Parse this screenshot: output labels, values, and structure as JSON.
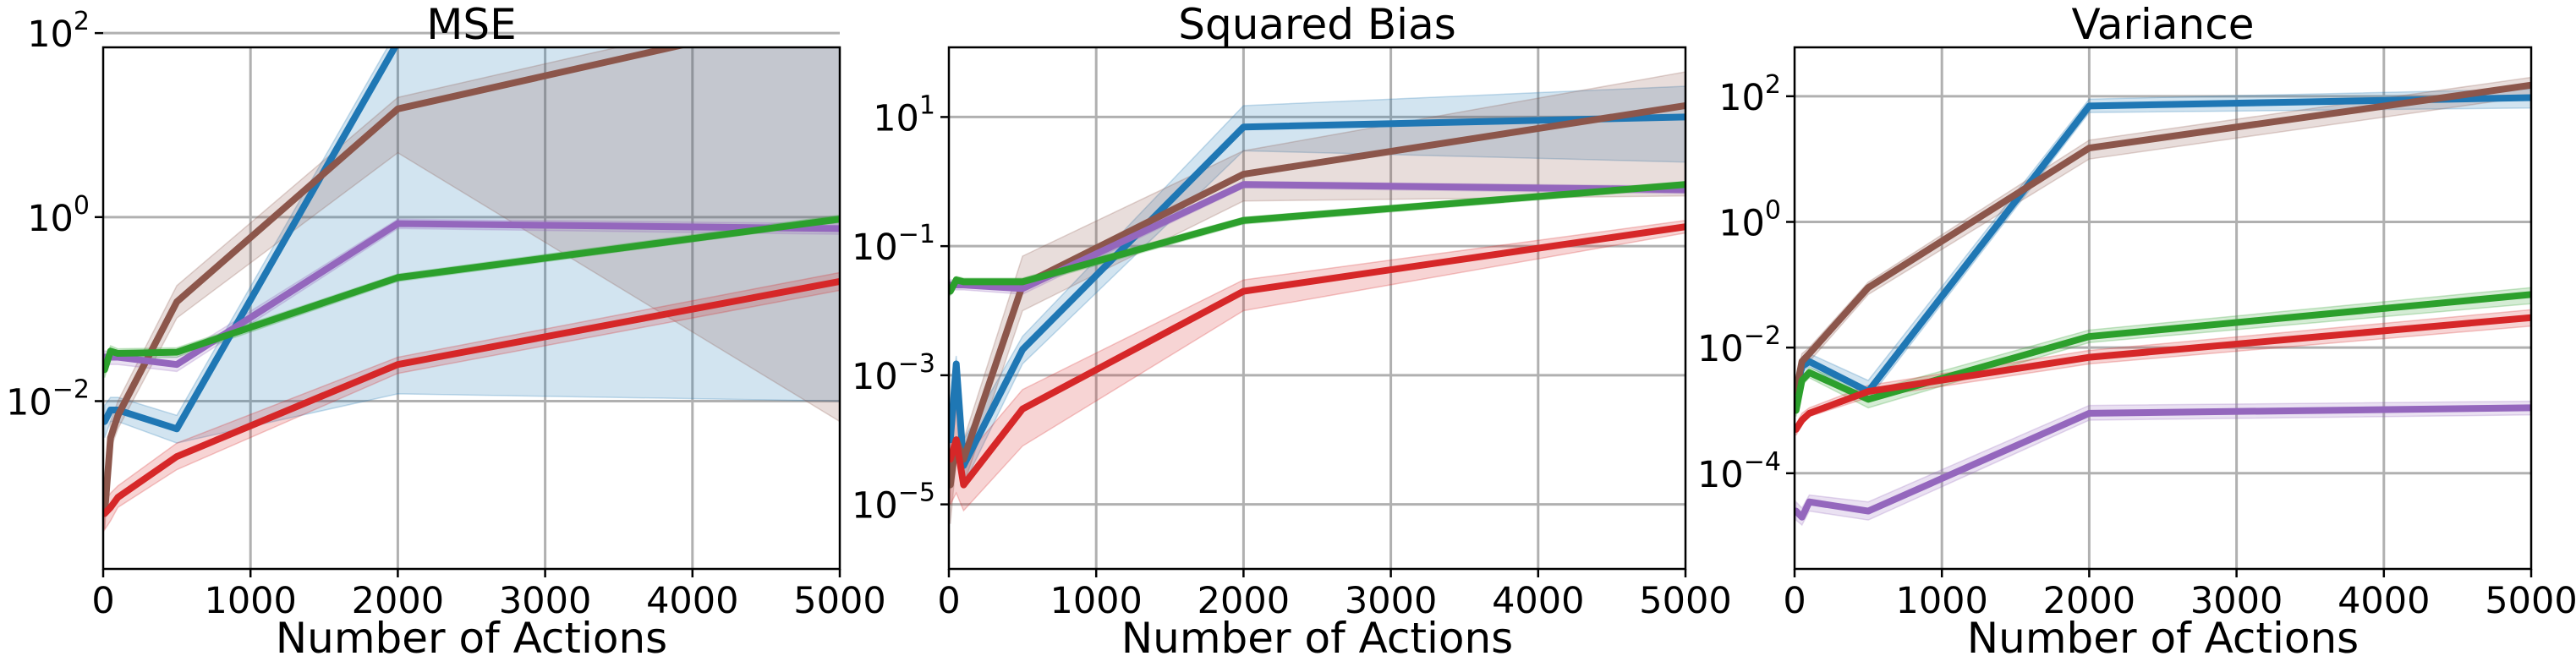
{
  "chart_data": [
    {
      "type": "line",
      "title": "MSE",
      "xlabel": "Number of Actions",
      "ylabel": "",
      "yscale": "log",
      "xlim": [
        0,
        5000
      ],
      "ylim": [
        0.00015,
        70
      ],
      "xticks": [
        0,
        1000,
        2000,
        3000,
        4000,
        5000
      ],
      "yticks": [
        {
          "value": 0.01,
          "exp": "-2"
        },
        {
          "value": 1,
          "exp": "0"
        },
        {
          "value": 100,
          "exp": "2"
        }
      ],
      "grid": true,
      "series": [
        {
          "color": "#1f77b4",
          "x": [
            10,
            50,
            100,
            500,
            2000,
            5000
          ],
          "y": [
            0.006,
            0.008,
            0.008,
            0.005,
            80,
            110
          ],
          "lower": [
            0.004,
            0.006,
            0.006,
            0.0035,
            0.012,
            0.01
          ],
          "upper": [
            0.009,
            0.011,
            0.011,
            0.007,
            110,
            250
          ]
        },
        {
          "color": "#8c564b",
          "x": [
            10,
            50,
            100,
            500,
            2000,
            5000
          ],
          "y": [
            0.0006,
            0.004,
            0.007,
            0.12,
            15,
            180
          ],
          "lower": [
            0.0004,
            0.003,
            0.005,
            0.08,
            5,
            0.006
          ],
          "upper": [
            0.0008,
            0.006,
            0.01,
            0.18,
            20,
            250
          ]
        },
        {
          "color": "#9467bd",
          "x": [
            10,
            50,
            100,
            500,
            2000,
            5000
          ],
          "y": [
            0.03,
            0.03,
            0.03,
            0.025,
            0.85,
            0.75
          ],
          "lower": [
            0.025,
            0.025,
            0.025,
            0.021,
            0.75,
            0.65
          ],
          "upper": [
            0.035,
            0.035,
            0.035,
            0.03,
            0.95,
            0.85
          ]
        },
        {
          "color": "#2ca02c",
          "x": [
            10,
            50,
            100,
            500,
            2000,
            5000
          ],
          "y": [
            0.022,
            0.035,
            0.033,
            0.034,
            0.22,
            0.95
          ],
          "lower": [
            0.018,
            0.03,
            0.029,
            0.03,
            0.2,
            0.88
          ],
          "upper": [
            0.026,
            0.04,
            0.037,
            0.038,
            0.24,
            1.05
          ]
        },
        {
          "color": "#d62728",
          "x": [
            10,
            50,
            100,
            500,
            2000,
            5000
          ],
          "y": [
            0.0006,
            0.0007,
            0.0009,
            0.0025,
            0.025,
            0.2
          ],
          "lower": [
            0.0004,
            0.0005,
            0.0007,
            0.0018,
            0.02,
            0.16
          ],
          "upper": [
            0.0008,
            0.001,
            0.0012,
            0.0035,
            0.03,
            0.25
          ]
        }
      ]
    },
    {
      "type": "line",
      "title": "Squared Bias",
      "xlabel": "Number of Actions",
      "ylabel": "",
      "yscale": "log",
      "xlim": [
        0,
        5000
      ],
      "ylim": [
        1e-06,
        120
      ],
      "xticks": [
        0,
        1000,
        2000,
        3000,
        4000,
        5000
      ],
      "yticks": [
        {
          "value": 1e-05,
          "exp": "-5"
        },
        {
          "value": 0.001,
          "exp": "-3"
        },
        {
          "value": 0.1,
          "exp": "-1"
        },
        {
          "value": 10,
          "exp": "1"
        }
      ],
      "grid": true,
      "series": [
        {
          "color": "#1f77b4",
          "x": [
            10,
            50,
            100,
            500,
            2000,
            5000
          ],
          "y": [
            0.0001,
            0.0015,
            4e-05,
            0.0025,
            7,
            10
          ],
          "lower": [
            2e-05,
            0.0008,
            2e-05,
            0.0015,
            3,
            2
          ],
          "upper": [
            0.0003,
            0.002,
            0.0001,
            0.004,
            15,
            30
          ]
        },
        {
          "color": "#8c564b",
          "x": [
            10,
            50,
            100,
            500,
            2000,
            5000
          ],
          "y": [
            2e-05,
            0.0001,
            5e-05,
            0.025,
            1.3,
            15
          ],
          "lower": [
            5e-06,
            5e-05,
            2e-05,
            0.01,
            0.5,
            0.6
          ],
          "upper": [
            5e-05,
            0.0003,
            0.0001,
            0.07,
            3,
            50
          ]
        },
        {
          "color": "#9467bd",
          "x": [
            10,
            50,
            100,
            500,
            2000,
            5000
          ],
          "y": [
            0.025,
            0.025,
            0.025,
            0.022,
            0.9,
            0.75
          ],
          "lower": [
            0.021,
            0.021,
            0.021,
            0.018,
            0.8,
            0.65
          ],
          "upper": [
            0.03,
            0.03,
            0.03,
            0.026,
            1.0,
            0.85
          ]
        },
        {
          "color": "#2ca02c",
          "x": [
            10,
            50,
            100,
            500,
            2000,
            5000
          ],
          "y": [
            0.02,
            0.03,
            0.028,
            0.028,
            0.25,
            0.9
          ],
          "lower": [
            0.017,
            0.026,
            0.024,
            0.024,
            0.22,
            0.8
          ],
          "upper": [
            0.023,
            0.034,
            0.032,
            0.032,
            0.28,
            1.0
          ]
        },
        {
          "color": "#d62728",
          "x": [
            10,
            50,
            100,
            500,
            2000,
            5000
          ],
          "y": [
            5e-05,
            0.0001,
            2e-05,
            0.0003,
            0.02,
            0.2
          ],
          "lower": [
            1e-05,
            1.5e-05,
            8e-06,
            8e-05,
            0.01,
            0.16
          ],
          "upper": [
            0.0002,
            0.0003,
            5e-05,
            0.0006,
            0.03,
            0.25
          ]
        }
      ]
    },
    {
      "type": "line",
      "title": "Variance",
      "xlabel": "Number of Actions",
      "ylabel": "",
      "yscale": "log",
      "xlim": [
        0,
        5000
      ],
      "ylim": [
        3e-06,
        600
      ],
      "xticks": [
        0,
        1000,
        2000,
        3000,
        4000,
        5000
      ],
      "yticks": [
        {
          "value": 0.0001,
          "exp": "-4"
        },
        {
          "value": 0.01,
          "exp": "-2"
        },
        {
          "value": 1,
          "exp": "0"
        },
        {
          "value": 100,
          "exp": "2"
        }
      ],
      "grid": true,
      "series": [
        {
          "color": "#1f77b4",
          "x": [
            10,
            50,
            100,
            500,
            2000,
            5000
          ],
          "y": [
            0.002,
            0.005,
            0.006,
            0.002,
            70,
            95
          ],
          "lower": [
            0.0015,
            0.004,
            0.005,
            0.0015,
            55,
            65
          ],
          "upper": [
            0.003,
            0.007,
            0.008,
            0.003,
            90,
            130
          ]
        },
        {
          "color": "#8c564b",
          "x": [
            10,
            50,
            100,
            500,
            2000,
            5000
          ],
          "y": [
            0.002,
            0.006,
            0.008,
            0.09,
            15,
            150
          ],
          "lower": [
            0.0015,
            0.005,
            0.006,
            0.07,
            10,
            100
          ],
          "upper": [
            0.003,
            0.008,
            0.01,
            0.11,
            20,
            200
          ]
        },
        {
          "color": "#9467bd",
          "x": [
            10,
            50,
            100,
            500,
            2000,
            5000
          ],
          "y": [
            2.5e-05,
            2e-05,
            3.5e-05,
            2.5e-05,
            0.0009,
            0.0011
          ],
          "lower": [
            1.8e-05,
            1.5e-05,
            2.5e-05,
            1.8e-05,
            0.0007,
            0.00085
          ],
          "upper": [
            3.5e-05,
            2.8e-05,
            4.5e-05,
            3.5e-05,
            0.0012,
            0.0014
          ]
        },
        {
          "color": "#2ca02c",
          "x": [
            10,
            50,
            100,
            500,
            2000,
            5000
          ],
          "y": [
            0.001,
            0.003,
            0.004,
            0.0015,
            0.015,
            0.07
          ],
          "lower": [
            0.0008,
            0.0025,
            0.0033,
            0.0011,
            0.012,
            0.05
          ],
          "upper": [
            0.0012,
            0.0035,
            0.0048,
            0.002,
            0.019,
            0.09
          ]
        },
        {
          "color": "#d62728",
          "x": [
            10,
            50,
            100,
            500,
            2000,
            5000
          ],
          "y": [
            0.0005,
            0.0007,
            0.0009,
            0.002,
            0.007,
            0.03
          ],
          "lower": [
            0.0004,
            0.0006,
            0.0008,
            0.0016,
            0.0055,
            0.022
          ],
          "upper": [
            0.0006,
            0.0009,
            0.0011,
            0.0025,
            0.009,
            0.04
          ]
        }
      ]
    }
  ]
}
